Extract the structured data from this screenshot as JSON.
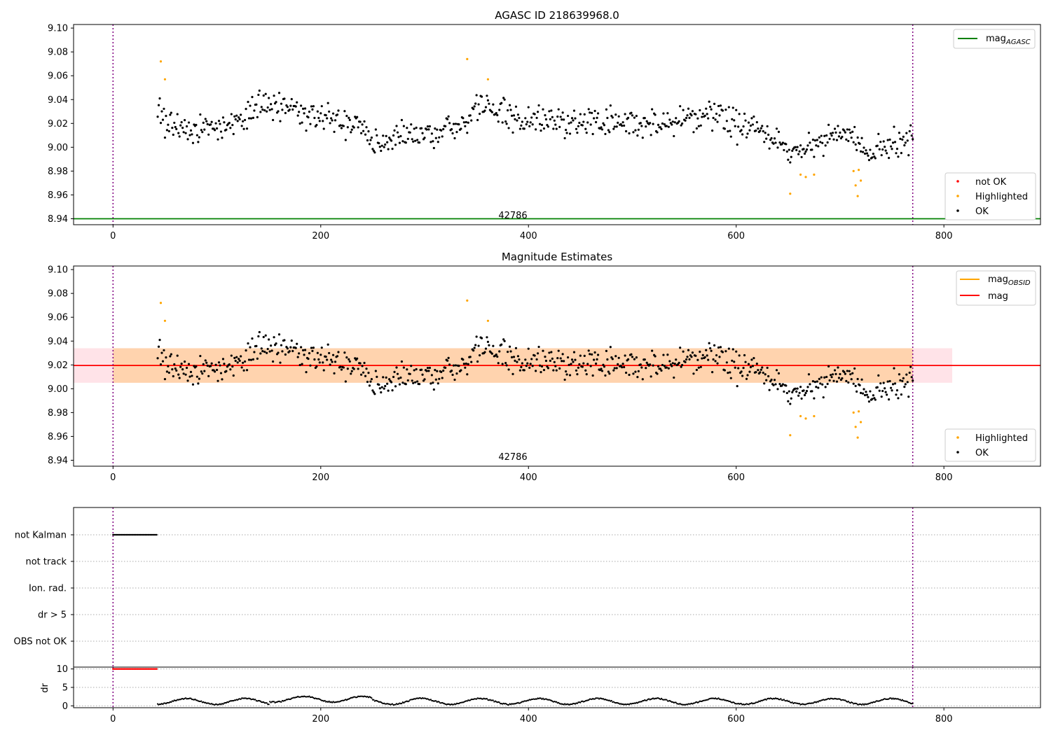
{
  "chart_data": [
    {
      "type": "scatter",
      "title": "AGASC ID 218639968.0",
      "xlabel": "",
      "ylabel": "",
      "xlim": [
        -38,
        893
      ],
      "ylim": [
        8.935,
        9.103
      ],
      "x_ticks": [
        "0",
        "200",
        "400",
        "600",
        "800"
      ],
      "y_ticks": [
        "8.94",
        "8.96",
        "8.98",
        "9.00",
        "9.02",
        "9.04",
        "9.06",
        "9.08",
        "9.10"
      ],
      "grid": false,
      "annotation": "42786",
      "vlines_x": [
        0,
        770
      ],
      "hlines": [
        {
          "name": "mag_AGASC",
          "y": 8.94,
          "color": "#008000"
        }
      ],
      "legend_upper": {
        "position": "upper right",
        "entries": [
          {
            "label": "mag",
            "subscript": "AGASC",
            "color": "#008000",
            "marker": "line"
          }
        ]
      },
      "legend_lower": {
        "position": "lower right",
        "entries": [
          {
            "label": "not OK",
            "color": "#ff0000",
            "marker": "dot"
          },
          {
            "label": "Highlighted",
            "color": "#ffa500",
            "marker": "dot"
          },
          {
            "label": "OK",
            "color": "#000000",
            "marker": "dot"
          }
        ]
      },
      "series": [
        {
          "name": "OK",
          "color": "#000000",
          "x_range": [
            43,
            770
          ],
          "y_anchors": [
            [
              43,
              9.03
            ],
            [
              55,
              9.02
            ],
            [
              80,
              9.012
            ],
            [
              100,
              9.018
            ],
            [
              120,
              9.022
            ],
            [
              140,
              9.033
            ],
            [
              160,
              9.035
            ],
            [
              180,
              9.03
            ],
            [
              200,
              9.025
            ],
            [
              220,
              9.023
            ],
            [
              240,
              9.015
            ],
            [
              250,
              8.998
            ],
            [
              270,
              9.008
            ],
            [
              300,
              9.012
            ],
            [
              320,
              9.013
            ],
            [
              335,
              9.018
            ],
            [
              350,
              9.038
            ],
            [
              370,
              9.03
            ],
            [
              400,
              9.02
            ],
            [
              430,
              9.02
            ],
            [
              460,
              9.02
            ],
            [
              500,
              9.02
            ],
            [
              540,
              9.02
            ],
            [
              580,
              9.028
            ],
            [
              600,
              9.02
            ],
            [
              630,
              9.01
            ],
            [
              650,
              8.995
            ],
            [
              670,
              9.0
            ],
            [
              690,
              9.012
            ],
            [
              710,
              9.01
            ],
            [
              725,
              8.995
            ],
            [
              750,
              9.0
            ],
            [
              770,
              9.01
            ]
          ]
        },
        {
          "name": "Highlighted",
          "color": "#ffa500",
          "points": [
            [
              46,
              9.072
            ],
            [
              50,
              9.057
            ],
            [
              341,
              9.074
            ],
            [
              361,
              9.057
            ],
            [
              652,
              8.961
            ],
            [
              662,
              8.977
            ],
            [
              667,
              8.975
            ],
            [
              675,
              8.977
            ],
            [
              713,
              8.98
            ],
            [
              715,
              8.968
            ],
            [
              717,
              8.959
            ],
            [
              718,
              8.981
            ],
            [
              720,
              8.972
            ]
          ]
        }
      ]
    },
    {
      "type": "scatter",
      "title": "Magnitude Estimates",
      "xlabel": "",
      "ylabel": "",
      "xlim": [
        -38,
        893
      ],
      "ylim": [
        8.935,
        9.103
      ],
      "x_ticks": [
        "0",
        "200",
        "400",
        "600",
        "800"
      ],
      "y_ticks": [
        "8.94",
        "8.96",
        "8.98",
        "9.00",
        "9.02",
        "9.04",
        "9.06",
        "9.08",
        "9.10"
      ],
      "grid": false,
      "annotation": "42786",
      "vlines_x": [
        0,
        770
      ],
      "hlines": [
        {
          "name": "mag_OBSID",
          "y": 9.0195,
          "x_range": [
            0,
            770
          ],
          "color": "#ffa500"
        },
        {
          "name": "mag",
          "y": 9.0195,
          "color": "#ff0000"
        }
      ],
      "bands": [
        {
          "name": "mag band",
          "y_range": [
            9.005,
            9.034
          ],
          "x_range": [
            -38,
            808
          ],
          "color": "#ffc0cb"
        },
        {
          "name": "mag_OBSID band",
          "y_range": [
            9.005,
            9.034
          ],
          "x_range": [
            0,
            770
          ],
          "color": "#ffa500"
        }
      ],
      "legend_upper": {
        "position": "upper right",
        "entries": [
          {
            "label": "mag",
            "subscript": "OBSID",
            "color": "#ffa500",
            "marker": "line"
          },
          {
            "label": "mag",
            "subscript": "",
            "color": "#ff0000",
            "marker": "line"
          }
        ]
      },
      "legend_lower": {
        "position": "lower right",
        "entries": [
          {
            "label": "Highlighted",
            "color": "#ffa500",
            "marker": "dot"
          },
          {
            "label": "OK",
            "color": "#000000",
            "marker": "dot"
          }
        ]
      },
      "series": [
        {
          "name": "OK",
          "color": "#000000",
          "same_as_panel": 1
        },
        {
          "name": "Highlighted",
          "color": "#ffa500",
          "same_as_panel": 1
        }
      ]
    },
    {
      "type": "scatter",
      "title": "",
      "xlim": [
        -38,
        893
      ],
      "categories": [
        "not Kalman",
        "not track",
        "Ion. rad.",
        "dr > 5",
        "OBS not OK"
      ],
      "x_ticks": [
        "0",
        "200",
        "400",
        "600",
        "800"
      ],
      "grid": true,
      "vlines_x": [
        0,
        770
      ],
      "series": [
        {
          "name": "not Kalman",
          "color": "#000000",
          "x_range": [
            0,
            43
          ]
        }
      ]
    },
    {
      "type": "line",
      "title": "",
      "ylabel": "dr",
      "xlim": [
        -38,
        893
      ],
      "ylim": [
        -0.5,
        10.5
      ],
      "y_ticks": [
        "0",
        "5",
        "10"
      ],
      "x_ticks": [
        "0",
        "200",
        "400",
        "600",
        "800"
      ],
      "grid": true,
      "vlines_x": [
        0,
        770
      ],
      "series": [
        {
          "name": "dr > 5",
          "color": "#ff0000",
          "x_range": [
            0,
            43
          ],
          "y": 10
        },
        {
          "name": "dr",
          "color": "#000000",
          "x_range": [
            43,
            770
          ],
          "y_range": [
            0,
            2.5
          ]
        }
      ]
    }
  ]
}
